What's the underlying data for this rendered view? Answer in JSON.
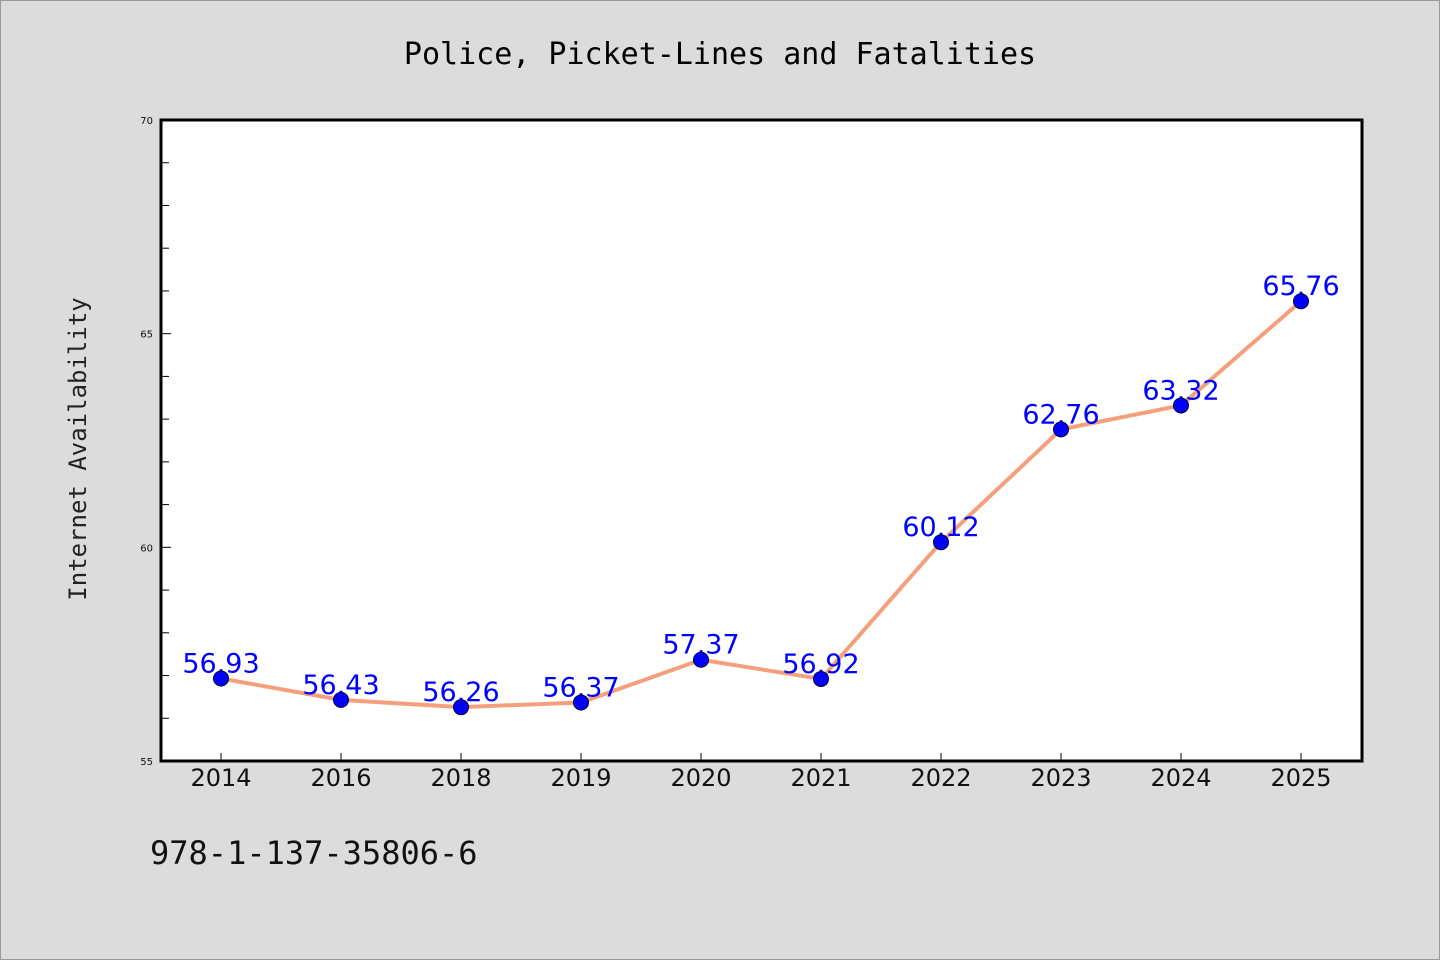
{
  "chart_data": {
    "type": "line",
    "title": "Police, Picket-Lines and Fatalities",
    "xlabel": "",
    "ylabel": "Internet Availability",
    "categories": [
      "2014",
      "2016",
      "2018",
      "2019",
      "2020",
      "2021",
      "2022",
      "2023",
      "2024",
      "2025"
    ],
    "series": [
      {
        "values": [
          56.93,
          56.43,
          56.26,
          56.37,
          57.37,
          56.92,
          60.12,
          62.76,
          63.32,
          65.76
        ],
        "data_labels": [
          "56.93",
          "56.43",
          "56.26",
          "56.37",
          "57.37",
          "56.92",
          "60.12",
          "62.76",
          "63.32",
          "65.76"
        ]
      }
    ],
    "ylim": [
      55,
      70
    ],
    "yticks": [
      "55",
      "60",
      "65",
      "70"
    ],
    "grid": false,
    "legend": "none",
    "colors": {
      "line": "#f4a07c",
      "marker": "#0000ff",
      "data_label": "#0000ff",
      "background": "#dcdcdc",
      "plot_bg": "#ffffff"
    }
  },
  "footer": {
    "code": "978-1-137-35806-6"
  }
}
